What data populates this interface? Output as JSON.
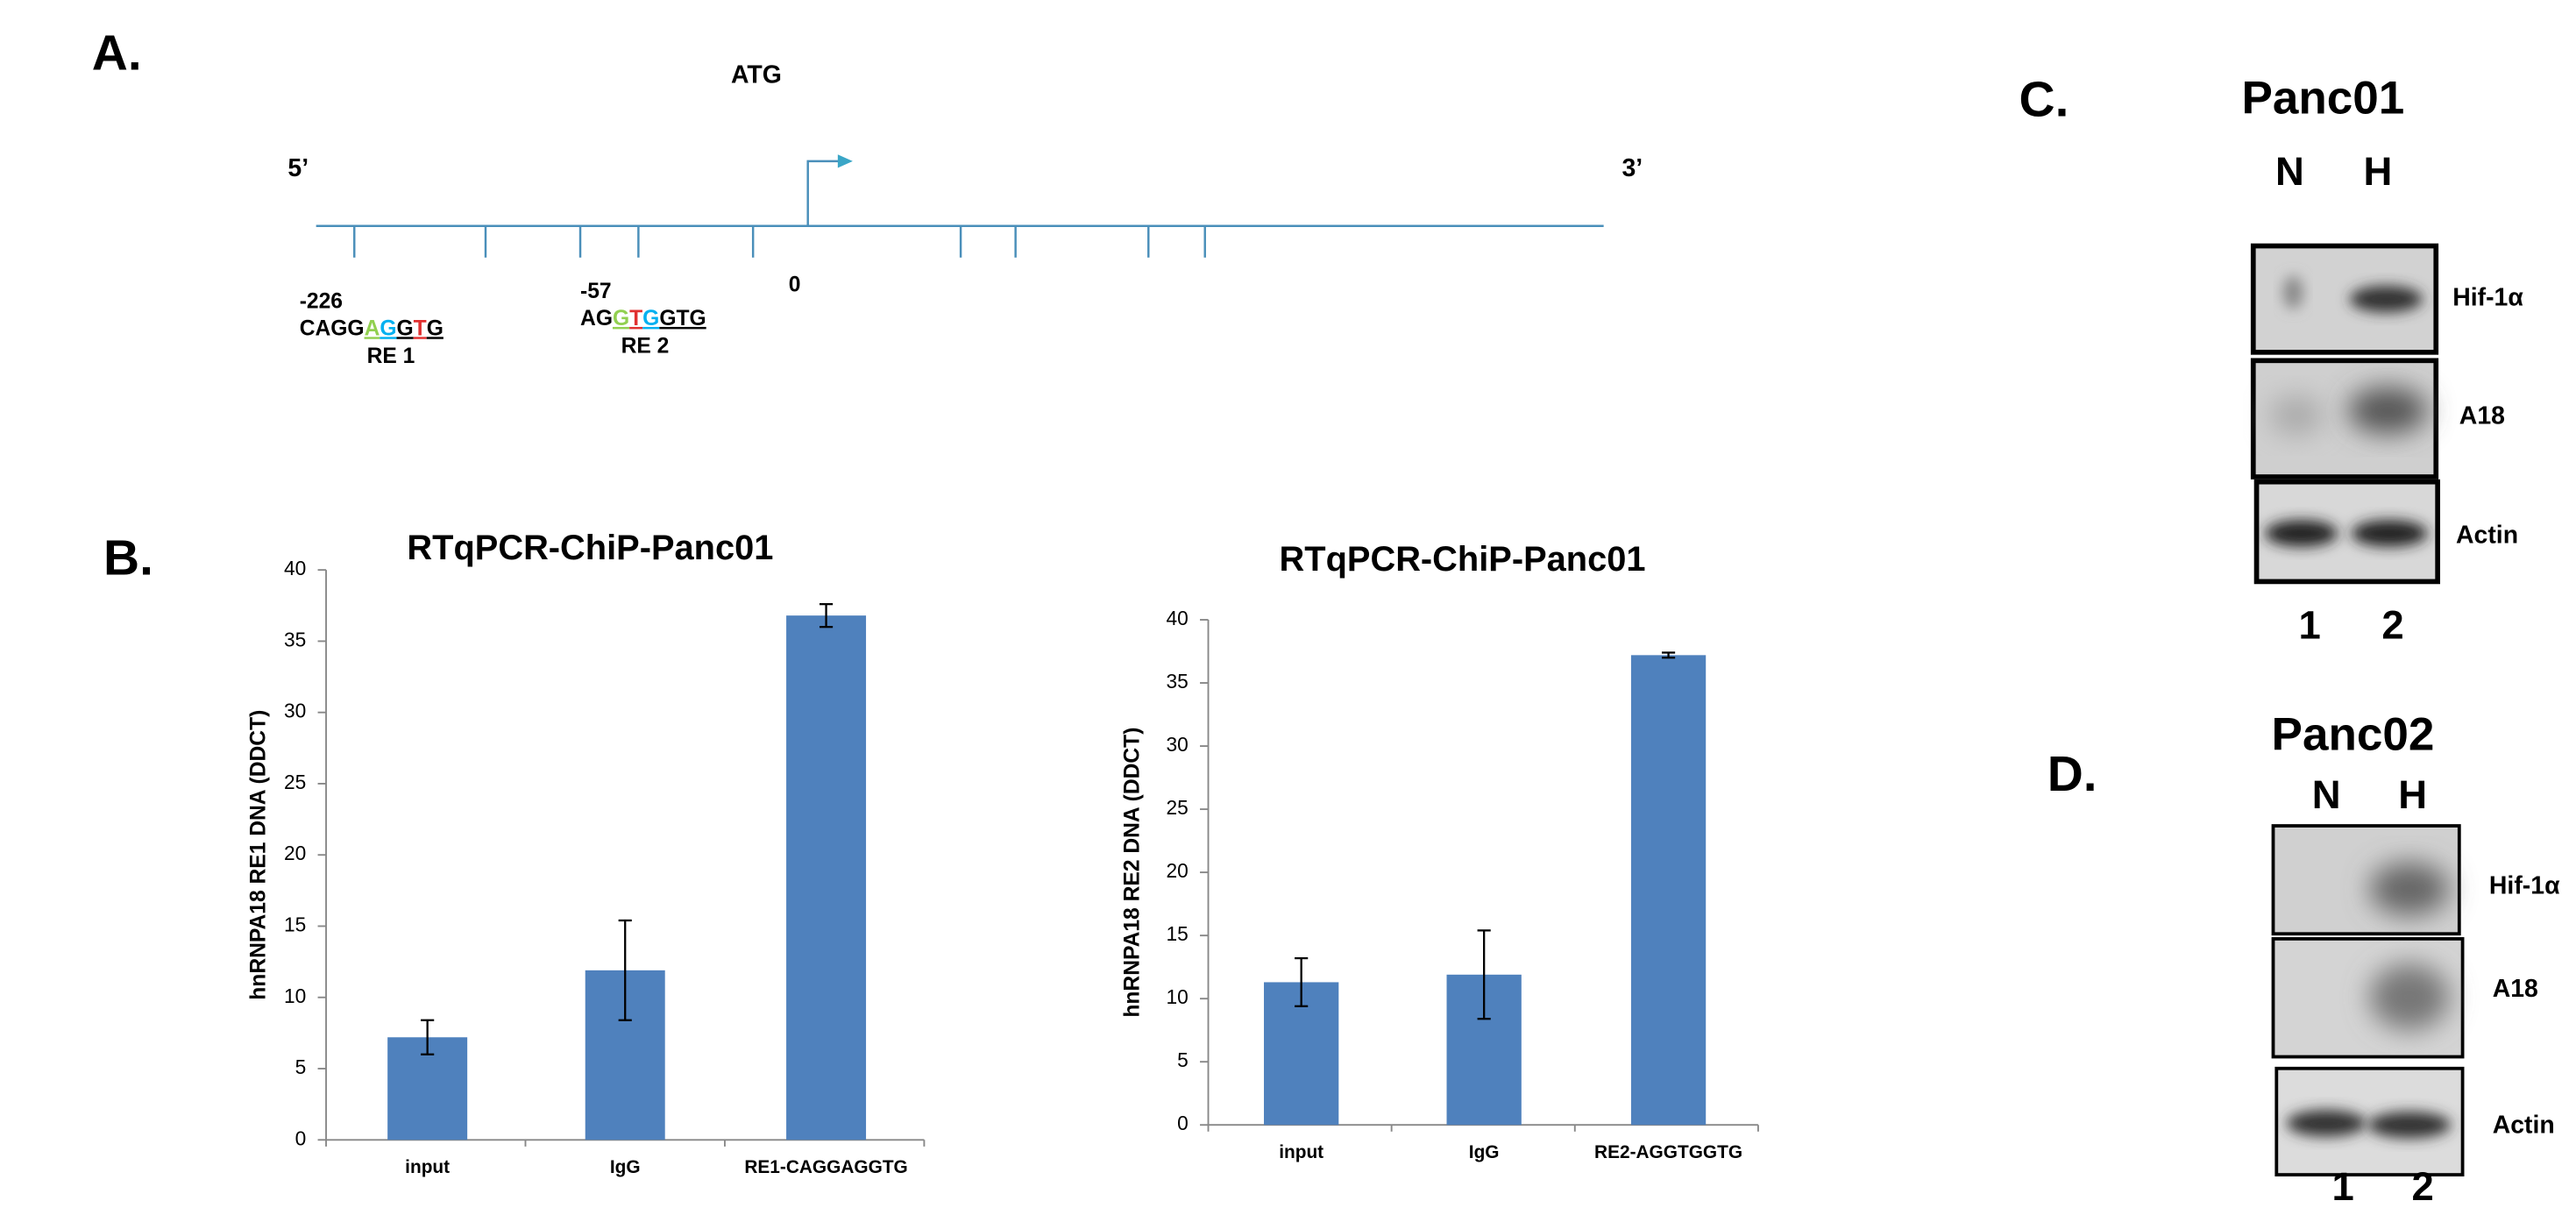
{
  "panel_labels": [
    "A.",
    "B.",
    "C.",
    "D."
  ],
  "diagram": {
    "start_label": "ATG",
    "five_prime": "5’",
    "three_prime": "3’",
    "origin_label": "0",
    "sites": [
      {
        "position": "-226",
        "name": "RE 1",
        "sequence": [
          {
            "text": "CAGG"
          },
          {
            "text": "A",
            "color": "#92d050",
            "underline": true
          },
          {
            "text": "G",
            "color": "#00b0f0",
            "underline": true
          },
          {
            "text": "G",
            "underline": true
          },
          {
            "text": "T",
            "color": "#e03030",
            "underline": true
          },
          {
            "text": "G",
            "underline": true
          }
        ]
      },
      {
        "position": "-57",
        "name": "RE 2",
        "sequence": [
          {
            "text": "AG"
          },
          {
            "text": "G",
            "color": "#92d050",
            "underline": true
          },
          {
            "text": "T",
            "color": "#e03030",
            "underline": true
          },
          {
            "text": "G",
            "color": "#00b0f0",
            "underline": true
          },
          {
            "text": "GTG",
            "underline": true
          }
        ]
      }
    ]
  },
  "blots": [
    {
      "cell_line": "Panc01",
      "lanes": [
        "N",
        "H"
      ],
      "proteins": [
        "Hif-1α",
        "A18",
        "Actin"
      ],
      "lane_numbers": [
        "1",
        "2"
      ]
    },
    {
      "cell_line": "Panc02",
      "lanes": [
        "N",
        "H"
      ],
      "proteins": [
        "Hif-1α",
        "A18",
        "Actin"
      ],
      "lane_numbers": [
        "1",
        "2"
      ]
    }
  ],
  "chart_data": [
    {
      "type": "bar",
      "title": "RTqPCR-ChiP-Panc01",
      "y_label": "hnRNPA18 RE1  DNA (DDCT)",
      "categories": [
        "input",
        "IgG",
        "RE1-CAGGAGGTG"
      ],
      "values": [
        7.2,
        11.9,
        36.8
      ],
      "errors": [
        1.2,
        3.5,
        0.8
      ],
      "color": "#4f81bd",
      "ylim": [
        0,
        40
      ],
      "yticks": [
        0,
        5,
        10,
        15,
        20,
        25,
        30,
        35,
        40
      ]
    },
    {
      "type": "bar",
      "title": "RTqPCR-ChiP-Panc01",
      "y_label": "hnRNPA18 RE2  DNA (DDCT)",
      "categories": [
        "input",
        "IgG",
        "RE2-AGGTGGTG"
      ],
      "values": [
        11.3,
        11.9,
        37.2
      ],
      "errors": [
        1.9,
        3.5,
        0.2
      ],
      "color": "#4f81bd",
      "ylim": [
        0,
        40
      ],
      "yticks": [
        0,
        5,
        10,
        15,
        20,
        25,
        30,
        35,
        40
      ]
    }
  ]
}
